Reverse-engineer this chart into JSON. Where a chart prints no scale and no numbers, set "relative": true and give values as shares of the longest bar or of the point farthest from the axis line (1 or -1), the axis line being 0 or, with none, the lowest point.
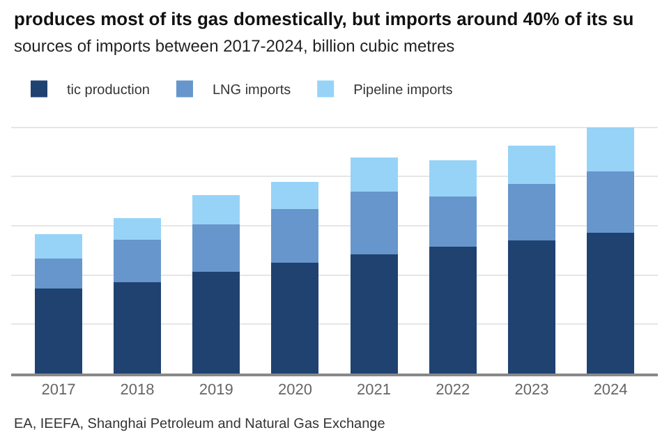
{
  "chart_data": {
    "type": "bar",
    "stacked": true,
    "relative": true,
    "title": "produces most of its gas domestically, but imports around 40% of its su",
    "subtitle": "sources of imports between 2017-2024, billion cubic metres",
    "categories": [
      "2017",
      "2018",
      "2019",
      "2020",
      "2021",
      "2022",
      "2023",
      "2024"
    ],
    "series": [
      {
        "name": "tic production",
        "color": "#1f4270",
        "values": [
          0.345,
          0.372,
          0.412,
          0.449,
          0.485,
          0.514,
          0.541,
          0.573
        ]
      },
      {
        "name": "LNG imports",
        "color": "#6696cc",
        "values": [
          0.122,
          0.172,
          0.194,
          0.218,
          0.254,
          0.204,
          0.228,
          0.247
        ]
      },
      {
        "name": "Pipeline imports",
        "color": "#97d3f7",
        "values": [
          0.098,
          0.087,
          0.119,
          0.112,
          0.138,
          0.148,
          0.155,
          0.18
        ]
      }
    ],
    "grid": "y",
    "legend": "top left",
    "annotations": [
      "EA, IEEFA, Shanghai Petroleum and Natural Gas Exchange"
    ]
  }
}
